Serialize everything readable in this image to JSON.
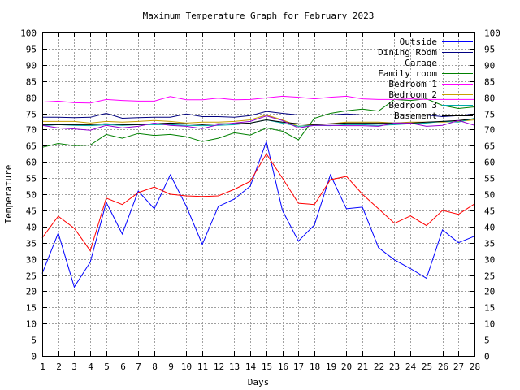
{
  "chart_data": {
    "type": "line",
    "title": "Maximum Temperature Graph for February 2023",
    "xlabel": "Days",
    "ylabel": "Temperature",
    "x": [
      1,
      2,
      3,
      4,
      5,
      6,
      7,
      8,
      9,
      10,
      11,
      12,
      13,
      14,
      15,
      16,
      17,
      18,
      19,
      20,
      21,
      22,
      23,
      24,
      25,
      26,
      27,
      28
    ],
    "xlim": [
      1,
      28
    ],
    "ylim": [
      0,
      100
    ],
    "ytick_step": 5,
    "grid": true,
    "legend_position": "top-right",
    "series": [
      {
        "name": "Outside",
        "color": "#0000ff",
        "values": [
          25.5,
          38,
          21.3,
          29,
          47.5,
          37.7,
          51,
          45.5,
          56,
          46.3,
          34.5,
          46.2,
          48.5,
          52.5,
          66.3,
          45,
          35.5,
          40.5,
          56,
          45.5,
          46,
          33.5,
          29.7,
          27,
          24,
          39,
          35,
          37
        ]
      },
      {
        "name": "Dining Room",
        "color": "#000080",
        "values": [
          73.8,
          73.8,
          73.7,
          73.8,
          75,
          73.5,
          73.7,
          73.8,
          73.8,
          74.8,
          74,
          74,
          73.8,
          74.3,
          75.6,
          75,
          74.5,
          74.5,
          74.5,
          74.8,
          74.5,
          74.5,
          74.5,
          74.5,
          74.5,
          74,
          74.3,
          74.8
        ]
      },
      {
        "name": "Garage",
        "color": "#ff0000",
        "values": [
          36.5,
          43.2,
          39.5,
          32.5,
          48.8,
          46.8,
          50.5,
          52.2,
          50,
          49.5,
          49.3,
          49.5,
          51.5,
          54,
          62.5,
          55,
          47.2,
          46.8,
          54.5,
          55.5,
          50,
          45.5,
          41,
          43.3,
          40.3,
          45,
          43.8,
          47
        ]
      },
      {
        "name": "Family room",
        "color": "#008000",
        "values": [
          64.5,
          65.7,
          65,
          65.2,
          68.5,
          67.3,
          68.8,
          68.2,
          68.5,
          67.8,
          66.3,
          67.3,
          69,
          68.3,
          70.5,
          69.5,
          66.8,
          73.5,
          75,
          75.8,
          76.3,
          75.7,
          79.3,
          79,
          79.5,
          77.5,
          76.5,
          77
        ]
      },
      {
        "name": "Bedroom 1",
        "color": "#ff00ff",
        "values": [
          78.5,
          78.8,
          78.3,
          78.2,
          79.3,
          79,
          78.8,
          78.8,
          80.2,
          79.2,
          79.2,
          79.7,
          79.2,
          79.3,
          79.8,
          80.3,
          80,
          79.5,
          80,
          80.3,
          79.5,
          79.3,
          79.3,
          79.5,
          79.3,
          79.3,
          79.3,
          79.3
        ]
      },
      {
        "name": "Bedroom 2",
        "color": "#c8a000",
        "values": [
          72.5,
          72.5,
          72.5,
          72,
          72.5,
          72.3,
          72.5,
          72.8,
          72.5,
          72,
          72.3,
          72.3,
          72.5,
          73,
          74.5,
          73,
          71,
          71.5,
          71.8,
          72.3,
          72.3,
          72.3,
          72,
          72.3,
          72.3,
          72.3,
          72.5,
          73
        ]
      },
      {
        "name": "Bedroom 3",
        "color": "#00aaaa",
        "values": [
          71.2,
          71.5,
          71.3,
          71.2,
          71.5,
          71.3,
          71.5,
          71.5,
          71.5,
          71.3,
          71.2,
          71.3,
          71.5,
          72,
          73,
          72,
          71,
          71.3,
          71.2,
          71.5,
          71.5,
          71.3,
          71.5,
          71.8,
          72,
          72.5,
          72.3,
          73.5
        ]
      },
      {
        "name": "Basement",
        "color": "#000000",
        "values": [
          71.5,
          71.5,
          71.5,
          71.5,
          71.8,
          71.5,
          71.5,
          71.8,
          72,
          71.8,
          71.5,
          71.8,
          71.8,
          72,
          73,
          72.3,
          71.8,
          71.5,
          71.8,
          72,
          72,
          72,
          72,
          72,
          72.3,
          72.5,
          72.8,
          73.3
        ]
      },
      {
        "name": "",
        "color": "#9400d3",
        "values": [
          71.3,
          70.5,
          70.2,
          69.8,
          71.3,
          70.5,
          71,
          72,
          71.3,
          71,
          70.3,
          71.5,
          72,
          72.5,
          74.2,
          72.8,
          70.5,
          71.3,
          71.3,
          71.2,
          71.2,
          71,
          72,
          72,
          71,
          71.3,
          72.8,
          71.3
        ]
      }
    ]
  }
}
